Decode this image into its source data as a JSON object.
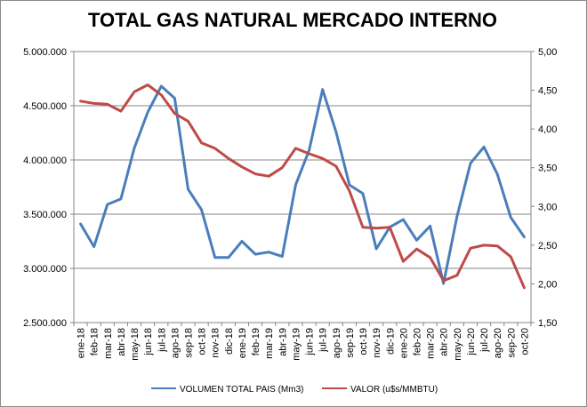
{
  "chart_data": {
    "type": "line",
    "title": "TOTAL GAS NATURAL MERCADO INTERNO",
    "categories": [
      "ene-18",
      "feb-18",
      "mar-18",
      "abr-18",
      "may-18",
      "jun-18",
      "jul-18",
      "ago-18",
      "sep-18",
      "oct-18",
      "nov-18",
      "dic-18",
      "ene-19",
      "feb-19",
      "mar-19",
      "abr-19",
      "may-19",
      "jun-19",
      "jul-19",
      "ago-19",
      "sep-19",
      "oct-19",
      "nov-19",
      "dic-19",
      "ene-20",
      "feb-20",
      "mar-20",
      "abr-20",
      "may-20",
      "jun-20",
      "jul-20",
      "ago-20",
      "sep-20",
      "oct-20"
    ],
    "y_left": {
      "ylim": [
        2500000,
        5000000
      ],
      "ticks": [
        "2.500.000",
        "3.000.000",
        "3.500.000",
        "4.000.000",
        "4.500.000",
        "5.000.000"
      ],
      "tick_values": [
        2500000,
        3000000,
        3500000,
        4000000,
        4500000,
        5000000
      ]
    },
    "y_right": {
      "ylim": [
        1.5,
        5.0
      ],
      "ticks": [
        "1,50",
        "2,00",
        "2,50",
        "3,00",
        "3,50",
        "4,00",
        "4,50",
        "5,00"
      ],
      "tick_values": [
        1.5,
        2.0,
        2.5,
        3.0,
        3.5,
        4.0,
        4.5,
        5.0
      ]
    },
    "grid": "horizontal",
    "legend_position": "bottom",
    "series": [
      {
        "name": "VOLUMEN TOTAL PAIS (Mm3)",
        "axis": "left",
        "color": "#4a7ebb",
        "values": [
          3410000,
          3200000,
          3590000,
          3640000,
          4110000,
          4440000,
          4680000,
          4570000,
          3730000,
          3540000,
          3100000,
          3100000,
          3250000,
          3130000,
          3150000,
          3110000,
          3770000,
          4090000,
          4650000,
          4260000,
          3770000,
          3690000,
          3180000,
          3380000,
          3450000,
          3260000,
          3390000,
          2860000,
          3480000,
          3970000,
          4120000,
          3870000,
          3470000,
          3290000
        ]
      },
      {
        "name": "VALOR (u$s/MMBTU)",
        "axis": "right",
        "color": "#be4b48",
        "values": [
          4.36,
          4.33,
          4.32,
          4.23,
          4.48,
          4.57,
          4.44,
          4.2,
          4.1,
          3.82,
          3.75,
          3.62,
          3.51,
          3.42,
          3.39,
          3.5,
          3.75,
          3.68,
          3.62,
          3.52,
          3.2,
          2.73,
          2.72,
          2.73,
          2.29,
          2.45,
          2.34,
          2.04,
          2.11,
          2.46,
          2.5,
          2.49,
          2.35,
          1.95
        ]
      }
    ]
  }
}
